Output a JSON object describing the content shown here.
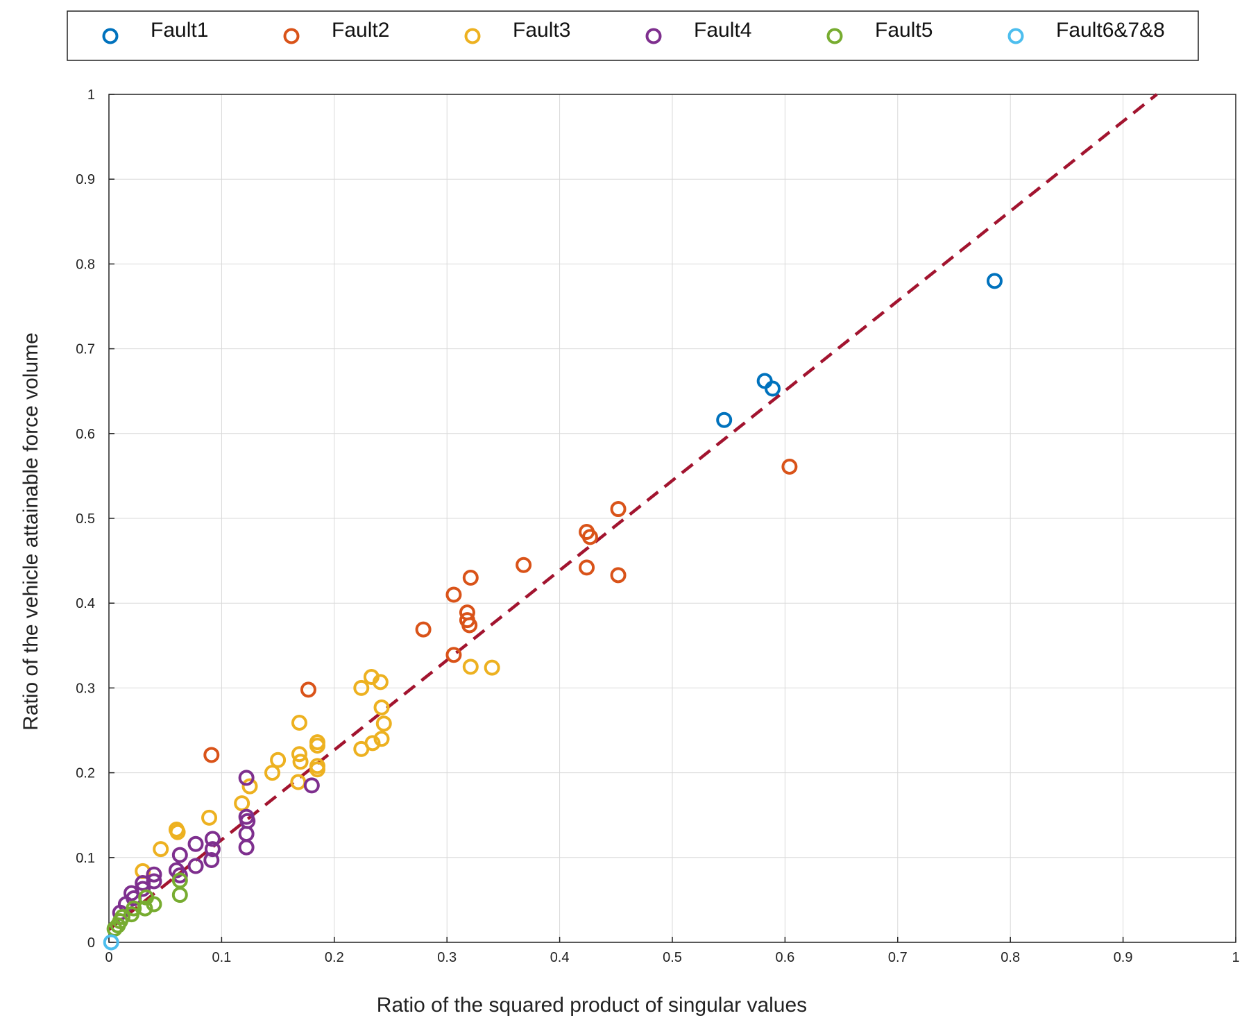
{
  "chart_data": {
    "type": "scatter",
    "title": "",
    "xlabel": "Ratio of the squared product of singular values",
    "ylabel": "Ratio of the vehicle attainable force volume",
    "xlim": [
      0,
      1
    ],
    "ylim": [
      0,
      1
    ],
    "xticks": [
      "0",
      "0.1",
      "0.2",
      "0.3",
      "0.4",
      "0.5",
      "0.6",
      "0.7",
      "0.8",
      "0.9",
      "1"
    ],
    "yticks": [
      "0",
      "0.1",
      "0.2",
      "0.3",
      "0.4",
      "0.5",
      "0.6",
      "0.7",
      "0.8",
      "0.9",
      "1"
    ],
    "grid": true,
    "legend_position": "top, outside",
    "series": [
      {
        "name": "Fault1",
        "color": "#0072BD",
        "points": [
          [
            0.786,
            0.78
          ],
          [
            0.582,
            0.662
          ],
          [
            0.589,
            0.653
          ],
          [
            0.546,
            0.616
          ]
        ]
      },
      {
        "name": "Fault2",
        "color": "#D95319",
        "points": [
          [
            0.604,
            0.561
          ],
          [
            0.452,
            0.511
          ],
          [
            0.424,
            0.484
          ],
          [
            0.427,
            0.478
          ],
          [
            0.424,
            0.442
          ],
          [
            0.452,
            0.433
          ],
          [
            0.368,
            0.445
          ],
          [
            0.321,
            0.43
          ],
          [
            0.306,
            0.41
          ],
          [
            0.318,
            0.389
          ],
          [
            0.318,
            0.38
          ],
          [
            0.32,
            0.374
          ],
          [
            0.279,
            0.369
          ],
          [
            0.306,
            0.339
          ],
          [
            0.177,
            0.298
          ],
          [
            0.091,
            0.221
          ]
        ]
      },
      {
        "name": "Fault3",
        "color": "#EDB120",
        "points": [
          [
            0.321,
            0.325
          ],
          [
            0.34,
            0.324
          ],
          [
            0.233,
            0.313
          ],
          [
            0.241,
            0.307
          ],
          [
            0.224,
            0.3
          ],
          [
            0.242,
            0.277
          ],
          [
            0.169,
            0.259
          ],
          [
            0.244,
            0.258
          ],
          [
            0.185,
            0.236
          ],
          [
            0.185,
            0.232
          ],
          [
            0.234,
            0.235
          ],
          [
            0.242,
            0.24
          ],
          [
            0.224,
            0.228
          ],
          [
            0.169,
            0.222
          ],
          [
            0.15,
            0.215
          ],
          [
            0.17,
            0.213
          ],
          [
            0.185,
            0.208
          ],
          [
            0.185,
            0.204
          ],
          [
            0.145,
            0.2
          ],
          [
            0.168,
            0.189
          ],
          [
            0.125,
            0.184
          ],
          [
            0.118,
            0.164
          ],
          [
            0.089,
            0.147
          ],
          [
            0.06,
            0.133
          ],
          [
            0.061,
            0.13
          ],
          [
            0.046,
            0.11
          ],
          [
            0.03,
            0.084
          ]
        ]
      },
      {
        "name": "Fault4",
        "color": "#7E2F8E",
        "points": [
          [
            0.122,
            0.194
          ],
          [
            0.18,
            0.185
          ],
          [
            0.122,
            0.148
          ],
          [
            0.123,
            0.143
          ],
          [
            0.122,
            0.128
          ],
          [
            0.122,
            0.112
          ],
          [
            0.092,
            0.122
          ],
          [
            0.092,
            0.11
          ],
          [
            0.091,
            0.097
          ],
          [
            0.063,
            0.103
          ],
          [
            0.077,
            0.116
          ],
          [
            0.077,
            0.09
          ],
          [
            0.06,
            0.085
          ],
          [
            0.063,
            0.079
          ],
          [
            0.04,
            0.08
          ],
          [
            0.04,
            0.072
          ],
          [
            0.03,
            0.07
          ],
          [
            0.03,
            0.063
          ],
          [
            0.02,
            0.058
          ],
          [
            0.022,
            0.052
          ],
          [
            0.015,
            0.045
          ],
          [
            0.01,
            0.035
          ]
        ]
      },
      {
        "name": "Fault5",
        "color": "#77AC30",
        "points": [
          [
            0.063,
            0.073
          ],
          [
            0.063,
            0.056
          ],
          [
            0.033,
            0.053
          ],
          [
            0.04,
            0.045
          ],
          [
            0.032,
            0.04
          ],
          [
            0.022,
            0.04
          ],
          [
            0.02,
            0.033
          ],
          [
            0.012,
            0.03
          ],
          [
            0.01,
            0.025
          ],
          [
            0.008,
            0.02
          ],
          [
            0.005,
            0.016
          ]
        ]
      },
      {
        "name": "Fault6&7&8",
        "color": "#4DBEEE",
        "points": [
          [
            0.002,
            0.0
          ]
        ]
      }
    ],
    "reference_line": {
      "points": [
        [
          0.0,
          0.015
        ],
        [
          0.93,
          1.0
        ]
      ],
      "color": "#A2142F",
      "style": "dashed"
    }
  }
}
